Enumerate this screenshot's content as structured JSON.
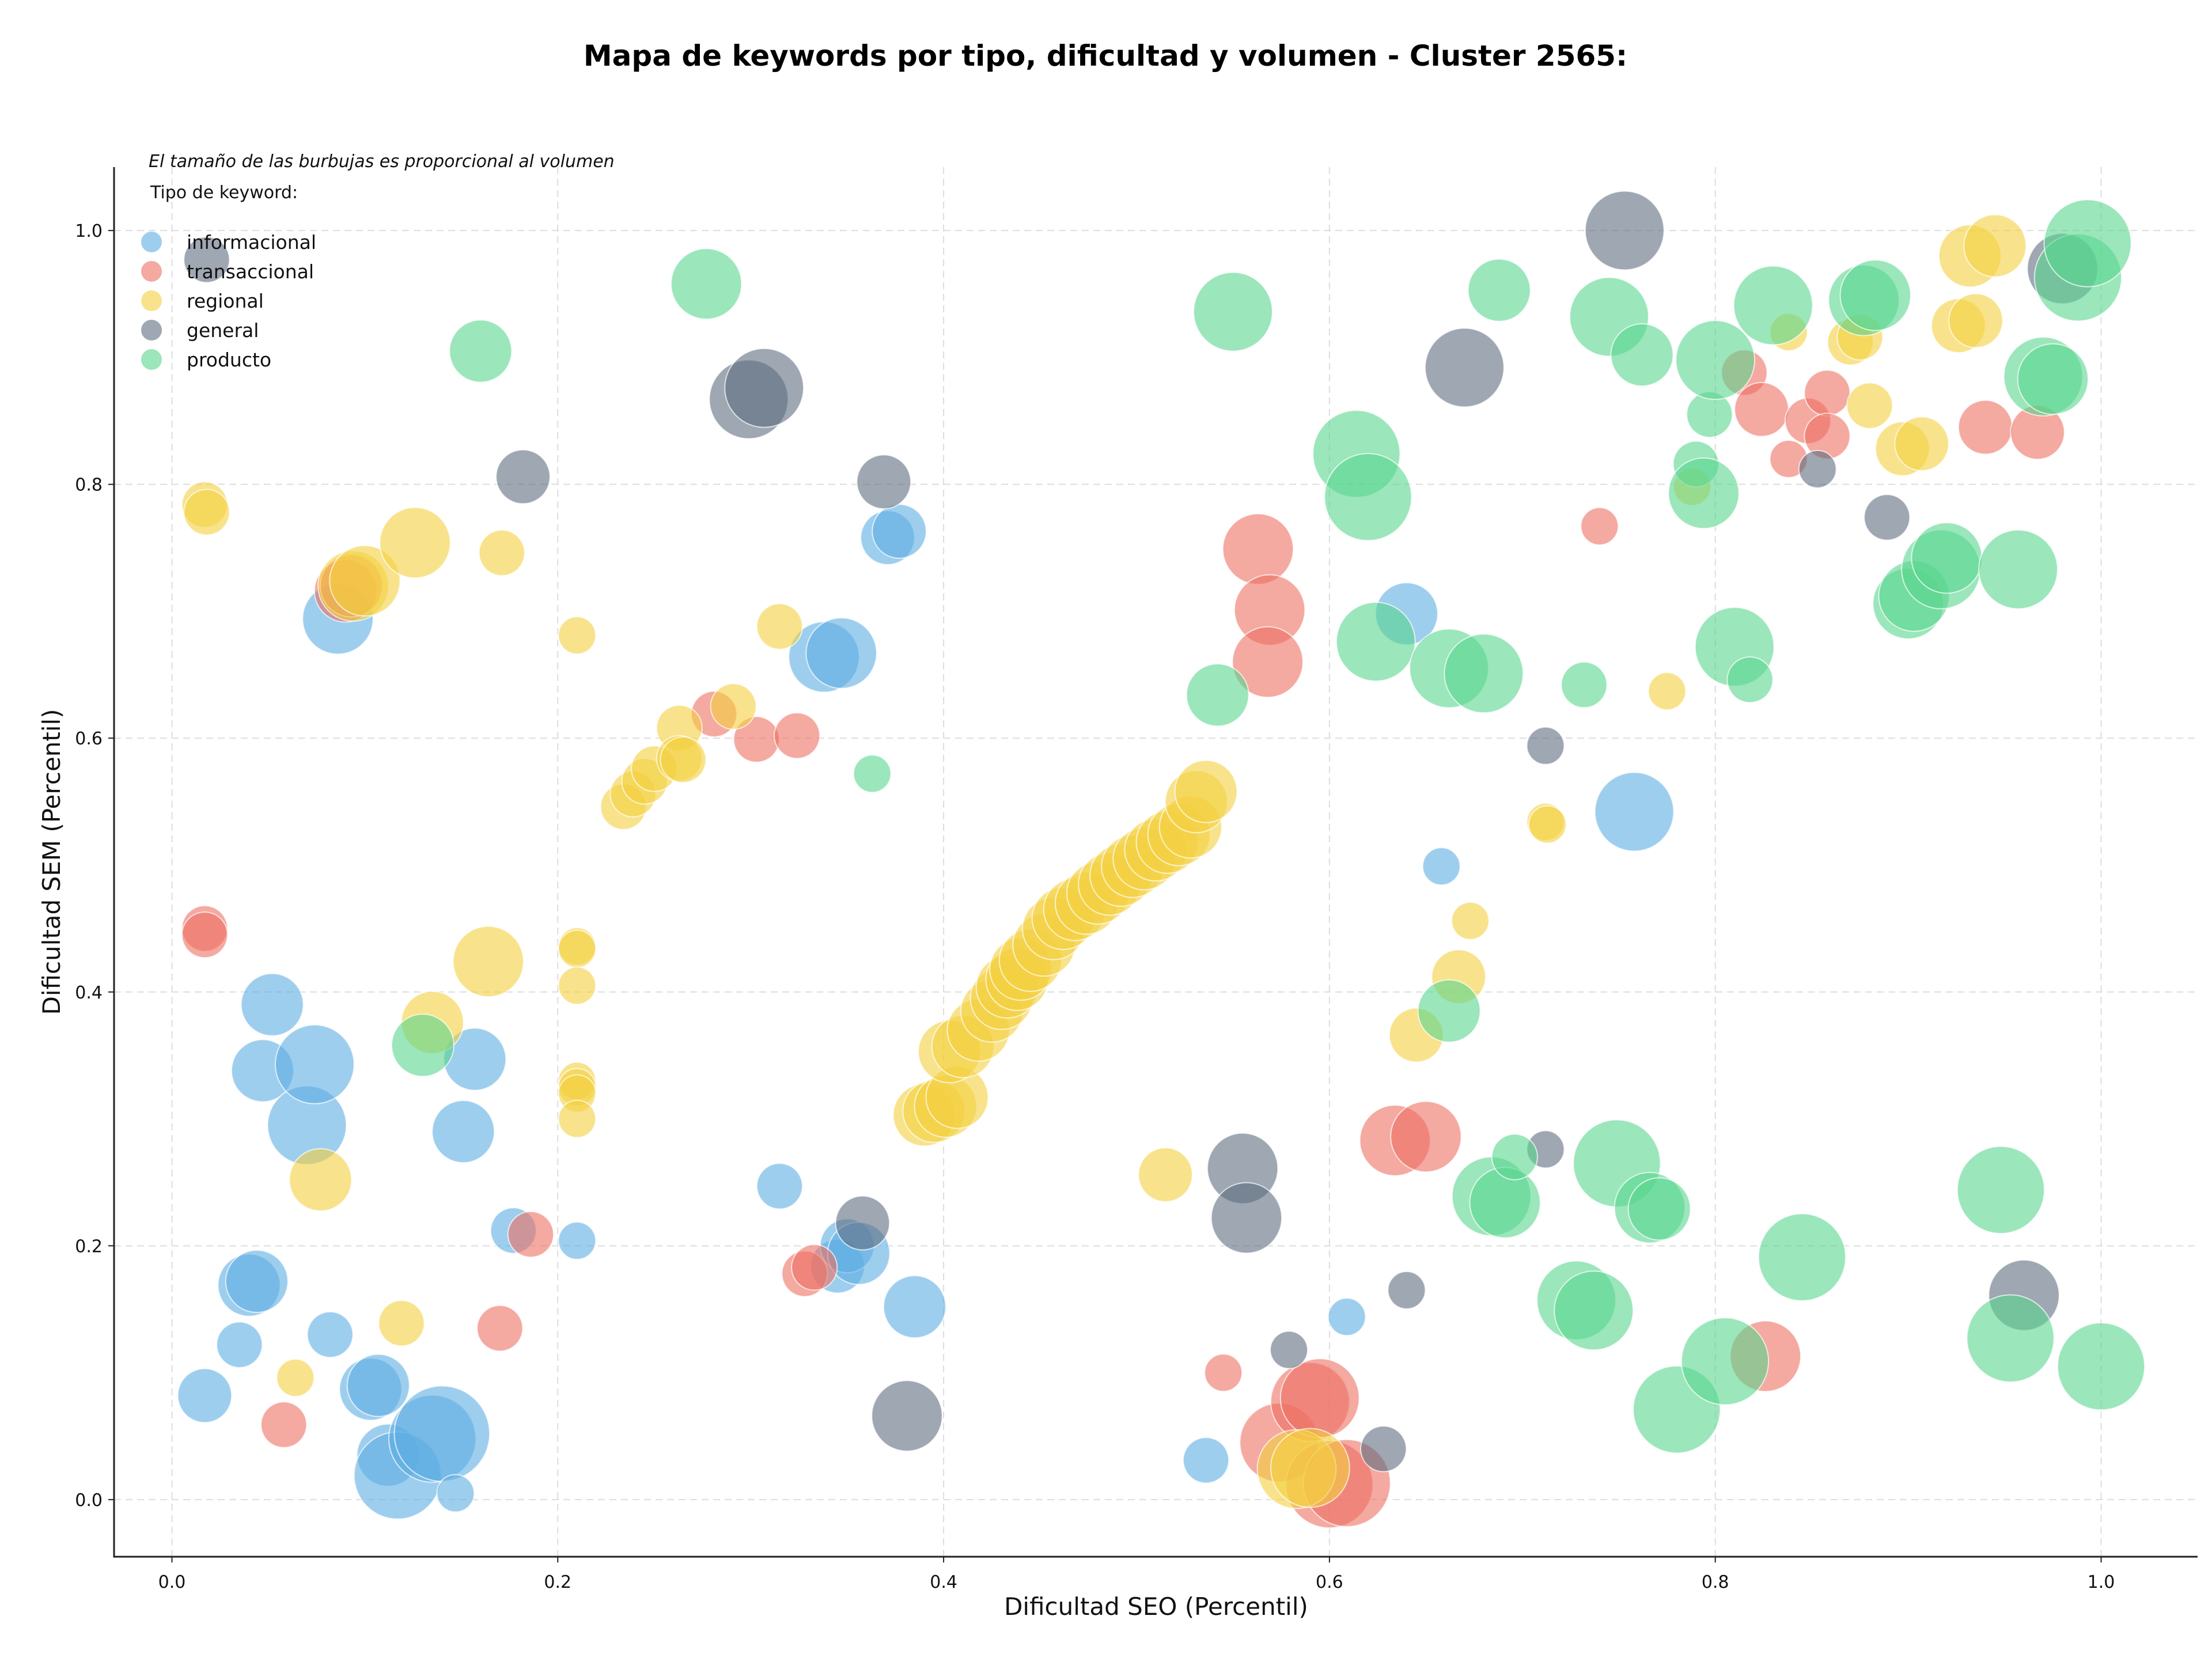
{
  "chart_data": {
    "type": "scatter",
    "title": "Mapa de keywords por tipo, dificultad y volumen - Cluster 2565:",
    "xlabel": "Dificultad SEO (Percentil)",
    "ylabel": "Dificultad SEM (Percentil)",
    "note": "El tamaño de las burbujas es proporcional al volumen",
    "legend_title": "Tipo de keyword:",
    "legend_position": "top-left",
    "grid": true,
    "xlim": [
      -0.03,
      1.05
    ],
    "ylim": [
      -0.045,
      1.05
    ],
    "xticks": [
      "0.0",
      "0.2",
      "0.4",
      "0.6",
      "0.8",
      "1.0"
    ],
    "yticks": [
      "0.0",
      "0.2",
      "0.4",
      "0.6",
      "0.8",
      "1.0"
    ],
    "series": [
      {
        "name": "informacional",
        "color": "#5dade2",
        "points": [
          [
            0.017,
            0.082,
            4
          ],
          [
            0.035,
            0.122,
            3
          ],
          [
            0.04,
            0.169,
            5
          ],
          [
            0.044,
            0.172,
            5
          ],
          [
            0.047,
            0.338,
            5
          ],
          [
            0.052,
            0.39,
            5
          ],
          [
            0.07,
            0.295,
            7
          ],
          [
            0.074,
            0.343,
            7
          ],
          [
            0.086,
            0.694,
            6
          ],
          [
            0.082,
            0.13,
            3
          ],
          [
            0.103,
            0.087,
            5
          ],
          [
            0.107,
            0.09,
            5
          ],
          [
            0.112,
            0.035,
            5
          ],
          [
            0.117,
            0.019,
            8
          ],
          [
            0.135,
            0.048,
            8
          ],
          [
            0.14,
            0.052,
            9
          ],
          [
            0.147,
            0.005,
            2
          ],
          [
            0.151,
            0.29,
            5
          ],
          [
            0.157,
            0.347,
            5
          ],
          [
            0.177,
            0.212,
            3
          ],
          [
            0.21,
            0.204,
            2
          ],
          [
            0.315,
            0.247,
            3
          ],
          [
            0.338,
            0.664,
            6
          ],
          [
            0.347,
            0.667,
            6
          ],
          [
            0.345,
            0.184,
            4
          ],
          [
            0.35,
            0.2,
            4
          ],
          [
            0.356,
            0.194,
            5
          ],
          [
            0.371,
            0.758,
            4
          ],
          [
            0.377,
            0.763,
            4
          ],
          [
            0.385,
            0.152,
            5
          ],
          [
            0.536,
            0.031,
            3
          ],
          [
            0.609,
            0.144,
            2
          ],
          [
            0.64,
            0.698,
            5
          ],
          [
            0.658,
            0.499,
            2
          ],
          [
            0.758,
            0.542,
            7
          ]
        ]
      },
      {
        "name": "transaccional",
        "color": "#ec7063",
        "points": [
          [
            0.017,
            0.45,
            3
          ],
          [
            0.017,
            0.445,
            3
          ],
          [
            0.058,
            0.059,
            3
          ],
          [
            0.09,
            0.716,
            5
          ],
          [
            0.093,
            0.72,
            5
          ],
          [
            0.17,
            0.135,
            3
          ],
          [
            0.186,
            0.209,
            3
          ],
          [
            0.281,
            0.619,
            3
          ],
          [
            0.303,
            0.599,
            3
          ],
          [
            0.324,
            0.602,
            3
          ],
          [
            0.328,
            0.178,
            3
          ],
          [
            0.333,
            0.183,
            3
          ],
          [
            0.545,
            0.1,
            2
          ],
          [
            0.563,
            0.749,
            6
          ],
          [
            0.569,
            0.701,
            6
          ],
          [
            0.568,
            0.66,
            6
          ],
          [
            0.574,
            0.045,
            7
          ],
          [
            0.59,
            0.077,
            7
          ],
          [
            0.595,
            0.08,
            7
          ],
          [
            0.6,
            0.012,
            8
          ],
          [
            0.609,
            0.013,
            8
          ],
          [
            0.634,
            0.283,
            6
          ],
          [
            0.65,
            0.286,
            6
          ],
          [
            0.74,
            0.767,
            2
          ],
          [
            0.815,
            0.888,
            3
          ],
          [
            0.824,
            0.859,
            4
          ],
          [
            0.826,
            0.113,
            6
          ],
          [
            0.838,
            0.82,
            2
          ],
          [
            0.848,
            0.85,
            3
          ],
          [
            0.858,
            0.872,
            3
          ],
          [
            0.858,
            0.838,
            3
          ],
          [
            0.94,
            0.845,
            4
          ],
          [
            0.967,
            0.841,
            4
          ]
        ]
      },
      {
        "name": "regional",
        "color": "#f4d03f",
        "points": [
          [
            0.017,
            0.784,
            3
          ],
          [
            0.018,
            0.778,
            3
          ],
          [
            0.064,
            0.096,
            2
          ],
          [
            0.077,
            0.252,
            5
          ],
          [
            0.094,
            0.72,
            6
          ],
          [
            0.1,
            0.724,
            6
          ],
          [
            0.119,
            0.139,
            3
          ],
          [
            0.126,
            0.754,
            6
          ],
          [
            0.135,
            0.376,
            5
          ],
          [
            0.164,
            0.424,
            6
          ],
          [
            0.171,
            0.746,
            3
          ],
          [
            0.21,
            0.681,
            2
          ],
          [
            0.21,
            0.436,
            2
          ],
          [
            0.21,
            0.434,
            2
          ],
          [
            0.21,
            0.405,
            2
          ],
          [
            0.21,
            0.33,
            2
          ],
          [
            0.21,
            0.325,
            2
          ],
          [
            0.21,
            0.32,
            2
          ],
          [
            0.21,
            0.3,
            2
          ],
          [
            0.234,
            0.546,
            3
          ],
          [
            0.239,
            0.556,
            3
          ],
          [
            0.245,
            0.566,
            3
          ],
          [
            0.25,
            0.576,
            3
          ],
          [
            0.263,
            0.608,
            3
          ],
          [
            0.263,
            0.584,
            3
          ],
          [
            0.265,
            0.583,
            3
          ],
          [
            0.291,
            0.625,
            3
          ],
          [
            0.315,
            0.688,
            3
          ],
          [
            0.39,
            0.303,
            5
          ],
          [
            0.395,
            0.306,
            5
          ],
          [
            0.401,
            0.31,
            5
          ],
          [
            0.407,
            0.317,
            5
          ],
          [
            0.403,
            0.353,
            5
          ],
          [
            0.41,
            0.357,
            5
          ],
          [
            0.418,
            0.37,
            5
          ],
          [
            0.425,
            0.385,
            5
          ],
          [
            0.43,
            0.395,
            5
          ],
          [
            0.433,
            0.404,
            5
          ],
          [
            0.438,
            0.41,
            5
          ],
          [
            0.44,
            0.418,
            5
          ],
          [
            0.445,
            0.425,
            5
          ],
          [
            0.452,
            0.437,
            5
          ],
          [
            0.457,
            0.45,
            5
          ],
          [
            0.462,
            0.458,
            5
          ],
          [
            0.468,
            0.465,
            5
          ],
          [
            0.474,
            0.47,
            5
          ],
          [
            0.48,
            0.478,
            5
          ],
          [
            0.486,
            0.485,
            5
          ],
          [
            0.492,
            0.492,
            5
          ],
          [
            0.498,
            0.499,
            5
          ],
          [
            0.504,
            0.505,
            5
          ],
          [
            0.51,
            0.512,
            5
          ],
          [
            0.516,
            0.518,
            5
          ],
          [
            0.522,
            0.524,
            5
          ],
          [
            0.528,
            0.53,
            5
          ],
          [
            0.531,
            0.55,
            5
          ],
          [
            0.536,
            0.558,
            5
          ],
          [
            0.515,
            0.256,
            4
          ],
          [
            0.583,
            0.024,
            7
          ],
          [
            0.59,
            0.025,
            7
          ],
          [
            0.645,
            0.366,
            4
          ],
          [
            0.667,
            0.412,
            4
          ],
          [
            0.673,
            0.456,
            2
          ],
          [
            0.712,
            0.534,
            2
          ],
          [
            0.713,
            0.532,
            2
          ],
          [
            0.775,
            0.637,
            2
          ],
          [
            0.788,
            0.798,
            2
          ],
          [
            0.838,
            0.92,
            2
          ],
          [
            0.87,
            0.912,
            3
          ],
          [
            0.875,
            0.916,
            3
          ],
          [
            0.88,
            0.862,
            3
          ],
          [
            0.897,
            0.828,
            4
          ],
          [
            0.907,
            0.832,
            4
          ],
          [
            0.926,
            0.925,
            4
          ],
          [
            0.932,
            0.98,
            5
          ],
          [
            0.935,
            0.929,
            4
          ],
          [
            0.945,
            0.988,
            5
          ]
        ]
      },
      {
        "name": "general",
        "color": "#5d6d7e",
        "points": [
          [
            0.018,
            0.977,
            3
          ],
          [
            0.182,
            0.806,
            4
          ],
          [
            0.299,
            0.867,
            7
          ],
          [
            0.307,
            0.876,
            7
          ],
          [
            0.358,
            0.218,
            4
          ],
          [
            0.369,
            0.802,
            4
          ],
          [
            0.381,
            0.066,
            6
          ],
          [
            0.555,
            0.261,
            6
          ],
          [
            0.557,
            0.222,
            6
          ],
          [
            0.579,
            0.118,
            2
          ],
          [
            0.628,
            0.04,
            3
          ],
          [
            0.64,
            0.165,
            2
          ],
          [
            0.67,
            0.892,
            7
          ],
          [
            0.712,
            0.594,
            2
          ],
          [
            0.712,
            0.276,
            2
          ],
          [
            0.753,
            1.0,
            7
          ],
          [
            0.853,
            0.812,
            2
          ],
          [
            0.889,
            0.774,
            3
          ],
          [
            0.96,
            0.161,
            6
          ],
          [
            0.98,
            0.97,
            6
          ]
        ]
      },
      {
        "name": "producto",
        "color": "#58d68d",
        "points": [
          [
            0.13,
            0.358,
            5
          ],
          [
            0.16,
            0.905,
            5
          ],
          [
            0.277,
            0.958,
            6
          ],
          [
            0.363,
            0.572,
            2
          ],
          [
            0.542,
            0.634,
            5
          ],
          [
            0.55,
            0.936,
            7
          ],
          [
            0.614,
            0.824,
            8
          ],
          [
            0.62,
            0.79,
            8
          ],
          [
            0.624,
            0.676,
            7
          ],
          [
            0.662,
            0.655,
            7
          ],
          [
            0.662,
            0.385,
            5
          ],
          [
            0.68,
            0.651,
            7
          ],
          [
            0.684,
            0.239,
            7
          ],
          [
            0.691,
            0.234,
            6
          ],
          [
            0.688,
            0.953,
            5
          ],
          [
            0.696,
            0.27,
            3
          ],
          [
            0.728,
            0.157,
            7
          ],
          [
            0.732,
            0.642,
            3
          ],
          [
            0.737,
            0.149,
            7
          ],
          [
            0.745,
            0.932,
            7
          ],
          [
            0.749,
            0.265,
            8
          ],
          [
            0.762,
            0.902,
            5
          ],
          [
            0.766,
            0.23,
            6
          ],
          [
            0.771,
            0.229,
            5
          ],
          [
            0.78,
            0.071,
            8
          ],
          [
            0.79,
            0.816,
            3
          ],
          [
            0.794,
            0.793,
            6
          ],
          [
            0.797,
            0.855,
            3
          ],
          [
            0.8,
            0.898,
            7
          ],
          [
            0.805,
            0.109,
            8
          ],
          [
            0.81,
            0.672,
            7
          ],
          [
            0.818,
            0.646,
            3
          ],
          [
            0.83,
            0.941,
            7
          ],
          [
            0.845,
            0.191,
            8
          ],
          [
            0.877,
            0.945,
            6
          ],
          [
            0.883,
            0.949,
            6
          ],
          [
            0.9,
            0.706,
            6
          ],
          [
            0.903,
            0.712,
            6
          ],
          [
            0.917,
            0.733,
            7
          ],
          [
            0.92,
            0.742,
            6
          ],
          [
            0.948,
            0.244,
            8
          ],
          [
            0.953,
            0.127,
            8
          ],
          [
            0.957,
            0.733,
            7
          ],
          [
            0.97,
            0.885,
            7
          ],
          [
            0.975,
            0.883,
            6
          ],
          [
            0.988,
            0.963,
            8
          ],
          [
            0.993,
            0.99,
            8
          ],
          [
            1.0,
            0.105,
            8
          ]
        ]
      }
    ]
  }
}
